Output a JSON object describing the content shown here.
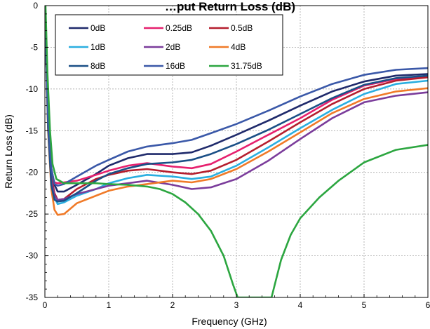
{
  "chart_data": {
    "type": "line",
    "title": "…put Return Loss (dB)",
    "xlabel": "Frequency (GHz)",
    "ylabel": "Return Loss (dB)",
    "xlim": [
      0,
      6
    ],
    "ylim": [
      -35,
      0
    ],
    "x_ticks": [
      0,
      1,
      2,
      3,
      4,
      5,
      6
    ],
    "y_ticks": [
      0,
      -5,
      -10,
      -15,
      -20,
      -25,
      -30,
      -35
    ],
    "grid": true,
    "legend_position": "top-left",
    "series": [
      {
        "name": "0dB",
        "color": "#1f2a6b",
        "points": [
          [
            0.01,
            -3
          ],
          [
            0.05,
            -13
          ],
          [
            0.1,
            -19.5
          ],
          [
            0.15,
            -21.5
          ],
          [
            0.2,
            -22.3
          ],
          [
            0.3,
            -22.3
          ],
          [
            0.5,
            -21.5
          ],
          [
            0.8,
            -20.2
          ],
          [
            1.0,
            -19.2
          ],
          [
            1.3,
            -18.3
          ],
          [
            1.6,
            -17.8
          ],
          [
            2.0,
            -17.8
          ],
          [
            2.3,
            -17.6
          ],
          [
            2.6,
            -16.8
          ],
          [
            3.0,
            -15.5
          ],
          [
            3.5,
            -13.8
          ],
          [
            4.0,
            -12.0
          ],
          [
            4.5,
            -10.3
          ],
          [
            5.0,
            -9.1
          ],
          [
            5.5,
            -8.4
          ],
          [
            6.0,
            -8.2
          ]
        ]
      },
      {
        "name": "0.25dB",
        "color": "#e6206e",
        "points": [
          [
            0.01,
            -3
          ],
          [
            0.05,
            -14
          ],
          [
            0.1,
            -20
          ],
          [
            0.15,
            -21.2
          ],
          [
            0.2,
            -21.3
          ],
          [
            0.3,
            -21.2
          ],
          [
            0.5,
            -21.0
          ],
          [
            0.8,
            -20.3
          ],
          [
            1.0,
            -19.8
          ],
          [
            1.3,
            -19.2
          ],
          [
            1.6,
            -18.9
          ],
          [
            2.0,
            -19.3
          ],
          [
            2.3,
            -19.5
          ],
          [
            2.6,
            -19.0
          ],
          [
            3.0,
            -17.5
          ],
          [
            3.5,
            -15.5
          ],
          [
            4.0,
            -13.5
          ],
          [
            4.5,
            -11.3
          ],
          [
            5.0,
            -9.6
          ],
          [
            5.5,
            -8.8
          ],
          [
            6.0,
            -8.5
          ]
        ]
      },
      {
        "name": "0.5dB",
        "color": "#b51e2e",
        "points": [
          [
            0.01,
            -3
          ],
          [
            0.05,
            -14
          ],
          [
            0.1,
            -20.5
          ],
          [
            0.15,
            -22.5
          ],
          [
            0.2,
            -23.3
          ],
          [
            0.3,
            -23.2
          ],
          [
            0.5,
            -22.0
          ],
          [
            0.8,
            -20.8
          ],
          [
            1.0,
            -20.3
          ],
          [
            1.3,
            -19.8
          ],
          [
            1.6,
            -19.6
          ],
          [
            2.0,
            -20.0
          ],
          [
            2.3,
            -20.2
          ],
          [
            2.6,
            -19.8
          ],
          [
            3.0,
            -18.5
          ],
          [
            3.5,
            -16.3
          ],
          [
            4.0,
            -14.0
          ],
          [
            4.5,
            -11.8
          ],
          [
            5.0,
            -10.0
          ],
          [
            5.5,
            -9.0
          ],
          [
            6.0,
            -8.6
          ]
        ]
      },
      {
        "name": "1dB",
        "color": "#2aaee0",
        "points": [
          [
            0.01,
            -3
          ],
          [
            0.05,
            -14.5
          ],
          [
            0.1,
            -21
          ],
          [
            0.15,
            -23
          ],
          [
            0.2,
            -23.8
          ],
          [
            0.3,
            -23.6
          ],
          [
            0.5,
            -22.8
          ],
          [
            0.8,
            -22.0
          ],
          [
            1.0,
            -21.3
          ],
          [
            1.3,
            -20.7
          ],
          [
            1.6,
            -20.3
          ],
          [
            2.0,
            -20.5
          ],
          [
            2.3,
            -20.8
          ],
          [
            2.6,
            -20.5
          ],
          [
            3.0,
            -19.2
          ],
          [
            3.5,
            -17.0
          ],
          [
            4.0,
            -14.7
          ],
          [
            4.5,
            -12.5
          ],
          [
            5.0,
            -10.6
          ],
          [
            5.5,
            -9.4
          ],
          [
            6.0,
            -9.0
          ]
        ]
      },
      {
        "name": "2dB",
        "color": "#7b3c9b",
        "points": [
          [
            0.01,
            -3
          ],
          [
            0.05,
            -14.5
          ],
          [
            0.1,
            -21
          ],
          [
            0.15,
            -22.8
          ],
          [
            0.2,
            -23.3
          ],
          [
            0.3,
            -23.2
          ],
          [
            0.5,
            -22.6
          ],
          [
            0.8,
            -22.0
          ],
          [
            1.0,
            -21.6
          ],
          [
            1.3,
            -21.3
          ],
          [
            1.6,
            -21.0
          ],
          [
            2.0,
            -21.5
          ],
          [
            2.3,
            -22.0
          ],
          [
            2.6,
            -21.8
          ],
          [
            3.0,
            -20.8
          ],
          [
            3.5,
            -18.6
          ],
          [
            4.0,
            -16.0
          ],
          [
            4.5,
            -13.5
          ],
          [
            5.0,
            -11.6
          ],
          [
            5.5,
            -10.8
          ],
          [
            6.0,
            -10.4
          ]
        ]
      },
      {
        "name": "4dB",
        "color": "#f07a28",
        "points": [
          [
            0.01,
            -3
          ],
          [
            0.05,
            -15
          ],
          [
            0.1,
            -22
          ],
          [
            0.15,
            -24.5
          ],
          [
            0.2,
            -25.1
          ],
          [
            0.3,
            -25.0
          ],
          [
            0.5,
            -23.7
          ],
          [
            0.8,
            -22.8
          ],
          [
            1.0,
            -22.2
          ],
          [
            1.3,
            -21.7
          ],
          [
            1.6,
            -21.4
          ],
          [
            2.0,
            -21.0
          ],
          [
            2.3,
            -21.2
          ],
          [
            2.6,
            -20.8
          ],
          [
            3.0,
            -19.6
          ],
          [
            3.5,
            -17.5
          ],
          [
            4.0,
            -15.2
          ],
          [
            4.5,
            -12.9
          ],
          [
            5.0,
            -11.2
          ],
          [
            5.5,
            -10.3
          ],
          [
            6.0,
            -9.9
          ]
        ]
      },
      {
        "name": "8dB",
        "color": "#1a4f86",
        "points": [
          [
            0.01,
            -3
          ],
          [
            0.05,
            -14.5
          ],
          [
            0.1,
            -21.5
          ],
          [
            0.15,
            -23.3
          ],
          [
            0.2,
            -23.5
          ],
          [
            0.3,
            -23.4
          ],
          [
            0.5,
            -22.5
          ],
          [
            0.8,
            -21.0
          ],
          [
            1.0,
            -20.2
          ],
          [
            1.3,
            -19.5
          ],
          [
            1.6,
            -19.0
          ],
          [
            2.0,
            -18.8
          ],
          [
            2.3,
            -18.5
          ],
          [
            2.6,
            -17.8
          ],
          [
            3.0,
            -16.6
          ],
          [
            3.5,
            -14.9
          ],
          [
            4.0,
            -13.0
          ],
          [
            4.5,
            -11.1
          ],
          [
            5.0,
            -9.5
          ],
          [
            5.5,
            -8.7
          ],
          [
            6.0,
            -8.4
          ]
        ]
      },
      {
        "name": "16dB",
        "color": "#3a58a8",
        "points": [
          [
            0.01,
            -3
          ],
          [
            0.05,
            -13.5
          ],
          [
            0.1,
            -19.5
          ],
          [
            0.15,
            -21.4
          ],
          [
            0.2,
            -21.6
          ],
          [
            0.3,
            -21.4
          ],
          [
            0.5,
            -20.5
          ],
          [
            0.8,
            -19.2
          ],
          [
            1.0,
            -18.5
          ],
          [
            1.3,
            -17.5
          ],
          [
            1.6,
            -16.9
          ],
          [
            2.0,
            -16.5
          ],
          [
            2.3,
            -16.1
          ],
          [
            2.6,
            -15.3
          ],
          [
            3.0,
            -14.2
          ],
          [
            3.5,
            -12.6
          ],
          [
            4.0,
            -10.9
          ],
          [
            4.5,
            -9.4
          ],
          [
            5.0,
            -8.3
          ],
          [
            5.5,
            -7.7
          ],
          [
            6.0,
            -7.5
          ]
        ]
      },
      {
        "name": "31.75dB",
        "color": "#2ca640",
        "points": [
          [
            0.01,
            0
          ],
          [
            0.04,
            -8
          ],
          [
            0.08,
            -15
          ],
          [
            0.12,
            -19
          ],
          [
            0.18,
            -20.8
          ],
          [
            0.3,
            -21.3
          ],
          [
            0.5,
            -21.3
          ],
          [
            0.8,
            -21.3
          ],
          [
            1.0,
            -21.4
          ],
          [
            1.3,
            -21.5
          ],
          [
            1.6,
            -21.7
          ],
          [
            1.8,
            -22.0
          ],
          [
            2.0,
            -22.6
          ],
          [
            2.2,
            -23.6
          ],
          [
            2.4,
            -25.0
          ],
          [
            2.6,
            -27.0
          ],
          [
            2.8,
            -30.0
          ],
          [
            2.95,
            -33.5
          ],
          [
            3.02,
            -35.0
          ],
          [
            3.55,
            -35.0
          ],
          [
            3.6,
            -33.5
          ],
          [
            3.7,
            -30.5
          ],
          [
            3.85,
            -27.5
          ],
          [
            4.0,
            -25.5
          ],
          [
            4.3,
            -23.0
          ],
          [
            4.6,
            -21.0
          ],
          [
            5.0,
            -18.8
          ],
          [
            5.5,
            -17.3
          ],
          [
            6.0,
            -16.7
          ]
        ]
      }
    ]
  }
}
